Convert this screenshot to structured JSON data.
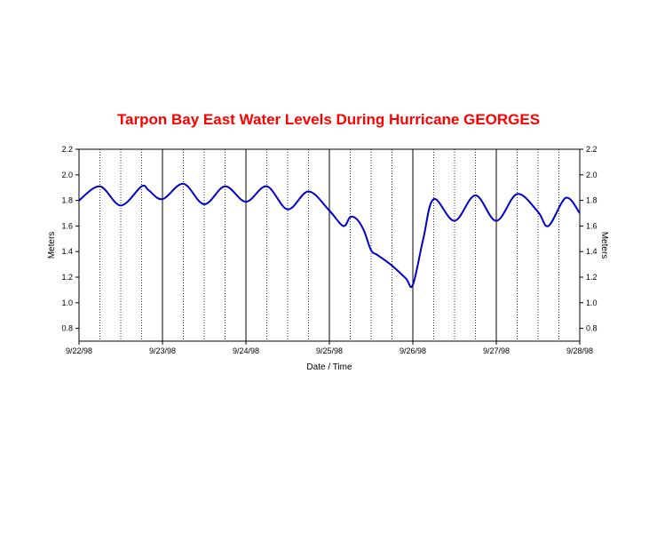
{
  "chart_data": {
    "type": "line",
    "title": "Tarpon Bay East Water Levels During Hurricane GEORGES",
    "xlabel": "Date / Time",
    "ylabel": "Meters",
    "ylabel_right": "Meters",
    "ylim": [
      0.7,
      2.2
    ],
    "yticks": [
      0.8,
      1.0,
      1.2,
      1.4,
      1.6,
      1.8,
      2.0,
      2.2
    ],
    "ytick_labels": [
      "0.8",
      "1.0",
      "1.2",
      "1.4",
      "1.6",
      "1.8",
      "2.0",
      "2.2"
    ],
    "xlim": [
      "9/22/98",
      "9/28/98"
    ],
    "xtick_labels": [
      "9/22/98",
      "9/23/98",
      "9/24/98",
      "9/25/98",
      "9/26/98",
      "9/27/98",
      "9/28/98"
    ],
    "grid": "vertical: solid at days, dotted at quarter-days",
    "colors": {
      "title": "#ff0000",
      "series": "#0000cc"
    },
    "series": [
      {
        "values": [
          [
            "9/22/98 00:00",
            1.8
          ],
          [
            "9/22/98 06:00",
            1.91
          ],
          [
            "9/22/98 12:00",
            1.76
          ],
          [
            "9/22/98 18:00",
            1.91
          ],
          [
            "9/22/98 20:00",
            1.88
          ],
          [
            "9/23/98 00:00",
            1.81
          ],
          [
            "9/23/98 06:00",
            1.93
          ],
          [
            "9/23/98 12:00",
            1.77
          ],
          [
            "9/23/98 18:00",
            1.91
          ],
          [
            "9/24/98 00:00",
            1.79
          ],
          [
            "9/24/98 06:00",
            1.91
          ],
          [
            "9/24/98 12:00",
            1.73
          ],
          [
            "9/24/98 18:00",
            1.87
          ],
          [
            "9/25/98 00:00",
            1.72
          ],
          [
            "9/25/98 04:00",
            1.6
          ],
          [
            "9/25/98 06:00",
            1.67
          ],
          [
            "9/25/98 08:00",
            1.65
          ],
          [
            "9/25/98 10:00",
            1.56
          ],
          [
            "9/25/98 12:00",
            1.41
          ],
          [
            "9/25/98 14:00",
            1.37
          ],
          [
            "9/25/98 18:00",
            1.29
          ],
          [
            "9/25/98 22:00",
            1.19
          ],
          [
            "9/26/98 00:00",
            1.14
          ],
          [
            "9/26/98 03:00",
            1.5
          ],
          [
            "9/26/98 06:00",
            1.81
          ],
          [
            "9/26/98 12:00",
            1.64
          ],
          [
            "9/26/98 18:00",
            1.84
          ],
          [
            "9/27/98 00:00",
            1.64
          ],
          [
            "9/27/98 06:00",
            1.85
          ],
          [
            "9/27/98 12:00",
            1.71
          ],
          [
            "9/27/98 15:00",
            1.6
          ],
          [
            "9/27/98 20:00",
            1.82
          ],
          [
            "9/28/98 00:00",
            1.7
          ]
        ]
      }
    ]
  }
}
